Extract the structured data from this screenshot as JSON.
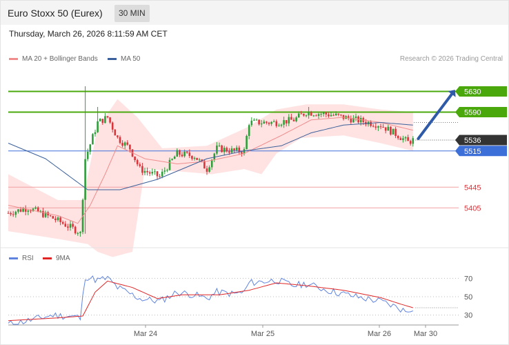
{
  "header": {
    "title": "Euro Stoxx 50 (Eurex)",
    "timeframe": "30 MIN",
    "datetime": "Thursday, March 26, 2026 8:11:59 AM CET"
  },
  "legend": {
    "ma20_label": "MA 20 + Bollinger Bands",
    "ma50_label": "MA 50",
    "credit": "Research © 2026 Trading Central"
  },
  "rsi_legend": {
    "rsi_label": "RSI",
    "ma_label": "9MA"
  },
  "colors": {
    "up": "#2e9e3a",
    "down": "#d9343a",
    "ma20": "#f08c8c",
    "ma50": "#3a5f9a",
    "bands": "#ffdede",
    "green_level": "#4aa80c",
    "blue_level": "#3d6fd9",
    "red_level": "#f0a0a0",
    "arrow": "#2f5aa8",
    "rsi": "#5f84e0",
    "rsi_ma": "#e02424"
  },
  "chart_data": [
    {
      "type": "candlestick",
      "x_labels": [
        "Mar 24",
        "Mar 25",
        "Mar 26",
        "Mar 30"
      ],
      "ylim": [
        5340,
        5660
      ],
      "levels": [
        {
          "value": 5630,
          "label": "5630",
          "kind": "resistance"
        },
        {
          "value": 5590,
          "label": "5590",
          "kind": "resistance"
        },
        {
          "value": 5536,
          "label": "5536",
          "kind": "last"
        },
        {
          "value": 5515,
          "label": "5515",
          "kind": "pivot"
        },
        {
          "value": 5445,
          "label": "5445",
          "kind": "support"
        },
        {
          "value": 5405,
          "label": "5405",
          "kind": "support"
        }
      ],
      "close_anchors": [
        [
          0,
          5395
        ],
        [
          8,
          5405
        ],
        [
          18,
          5385
        ],
        [
          28,
          5360
        ],
        [
          29,
          5355
        ],
        [
          31,
          5500
        ],
        [
          36,
          5570
        ],
        [
          40,
          5580
        ],
        [
          44,
          5540
        ],
        [
          49,
          5520
        ],
        [
          53,
          5480
        ],
        [
          61,
          5465
        ],
        [
          68,
          5510
        ],
        [
          75,
          5505
        ],
        [
          80,
          5480
        ],
        [
          84,
          5520
        ],
        [
          91,
          5515
        ],
        [
          95,
          5515
        ],
        [
          97,
          5570
        ],
        [
          108,
          5570
        ],
        [
          115,
          5575
        ],
        [
          120,
          5590
        ],
        [
          130,
          5585
        ],
        [
          140,
          5575
        ],
        [
          150,
          5565
        ],
        [
          157,
          5545
        ],
        [
          161,
          5532
        ],
        [
          163,
          5536
        ]
      ],
      "ma20_anchors": [
        [
          0,
          5410
        ],
        [
          20,
          5390
        ],
        [
          28,
          5375
        ],
        [
          33,
          5410
        ],
        [
          39,
          5470
        ],
        [
          44,
          5525
        ],
        [
          55,
          5500
        ],
        [
          68,
          5490
        ],
        [
          80,
          5495
        ],
        [
          95,
          5510
        ],
        [
          110,
          5545
        ],
        [
          122,
          5575
        ],
        [
          135,
          5580
        ],
        [
          150,
          5570
        ],
        [
          163,
          5555
        ]
      ],
      "ma50_anchors": [
        [
          0,
          5530
        ],
        [
          15,
          5500
        ],
        [
          32,
          5440
        ],
        [
          45,
          5440
        ],
        [
          60,
          5460
        ],
        [
          80,
          5500
        ],
        [
          95,
          5515
        ],
        [
          110,
          5525
        ],
        [
          122,
          5550
        ],
        [
          135,
          5565
        ],
        [
          150,
          5570
        ],
        [
          163,
          5565
        ]
      ],
      "band_upper_anchors": [
        [
          0,
          5470
        ],
        [
          20,
          5420
        ],
        [
          30,
          5420
        ],
        [
          36,
          5560
        ],
        [
          44,
          5615
        ],
        [
          52,
          5580
        ],
        [
          62,
          5520
        ],
        [
          80,
          5525
        ],
        [
          96,
          5560
        ],
        [
          108,
          5595
        ],
        [
          120,
          5605
        ],
        [
          135,
          5605
        ],
        [
          150,
          5595
        ],
        [
          163,
          5590
        ]
      ],
      "band_lower_anchors": [
        [
          0,
          5360
        ],
        [
          20,
          5345
        ],
        [
          32,
          5335
        ],
        [
          36,
          5320
        ],
        [
          42,
          5310
        ],
        [
          50,
          5320
        ],
        [
          55,
          5480
        ],
        [
          70,
          5475
        ],
        [
          82,
          5470
        ],
        [
          95,
          5480
        ],
        [
          102,
          5470
        ],
        [
          108,
          5510
        ],
        [
          118,
          5540
        ],
        [
          135,
          5545
        ],
        [
          150,
          5530
        ],
        [
          163,
          5515
        ]
      ]
    },
    {
      "type": "line",
      "name": "RSI",
      "y_ticks": [
        70,
        50,
        30
      ],
      "ylim": [
        20,
        80
      ],
      "last_value": 38,
      "rsi_anchors": [
        [
          0,
          20
        ],
        [
          8,
          24
        ],
        [
          18,
          30
        ],
        [
          28,
          28
        ],
        [
          29,
          26
        ],
        [
          31,
          72
        ],
        [
          36,
          68
        ],
        [
          40,
          70
        ],
        [
          44,
          60
        ],
        [
          53,
          48
        ],
        [
          61,
          45
        ],
        [
          68,
          55
        ],
        [
          75,
          52
        ],
        [
          80,
          48
        ],
        [
          84,
          55
        ],
        [
          91,
          53
        ],
        [
          95,
          55
        ],
        [
          97,
          65
        ],
        [
          108,
          68
        ],
        [
          115,
          62
        ],
        [
          120,
          64
        ],
        [
          130,
          56
        ],
        [
          140,
          50
        ],
        [
          150,
          45
        ],
        [
          157,
          38
        ],
        [
          160,
          34
        ],
        [
          163,
          38
        ]
      ],
      "ma_anchors": [
        [
          0,
          24
        ],
        [
          20,
          27
        ],
        [
          30,
          29
        ],
        [
          35,
          55
        ],
        [
          40,
          67
        ],
        [
          50,
          60
        ],
        [
          60,
          48
        ],
        [
          70,
          52
        ],
        [
          85,
          52
        ],
        [
          97,
          57
        ],
        [
          108,
          65
        ],
        [
          120,
          62
        ],
        [
          135,
          57
        ],
        [
          150,
          49
        ],
        [
          158,
          42
        ],
        [
          163,
          38
        ]
      ]
    }
  ]
}
